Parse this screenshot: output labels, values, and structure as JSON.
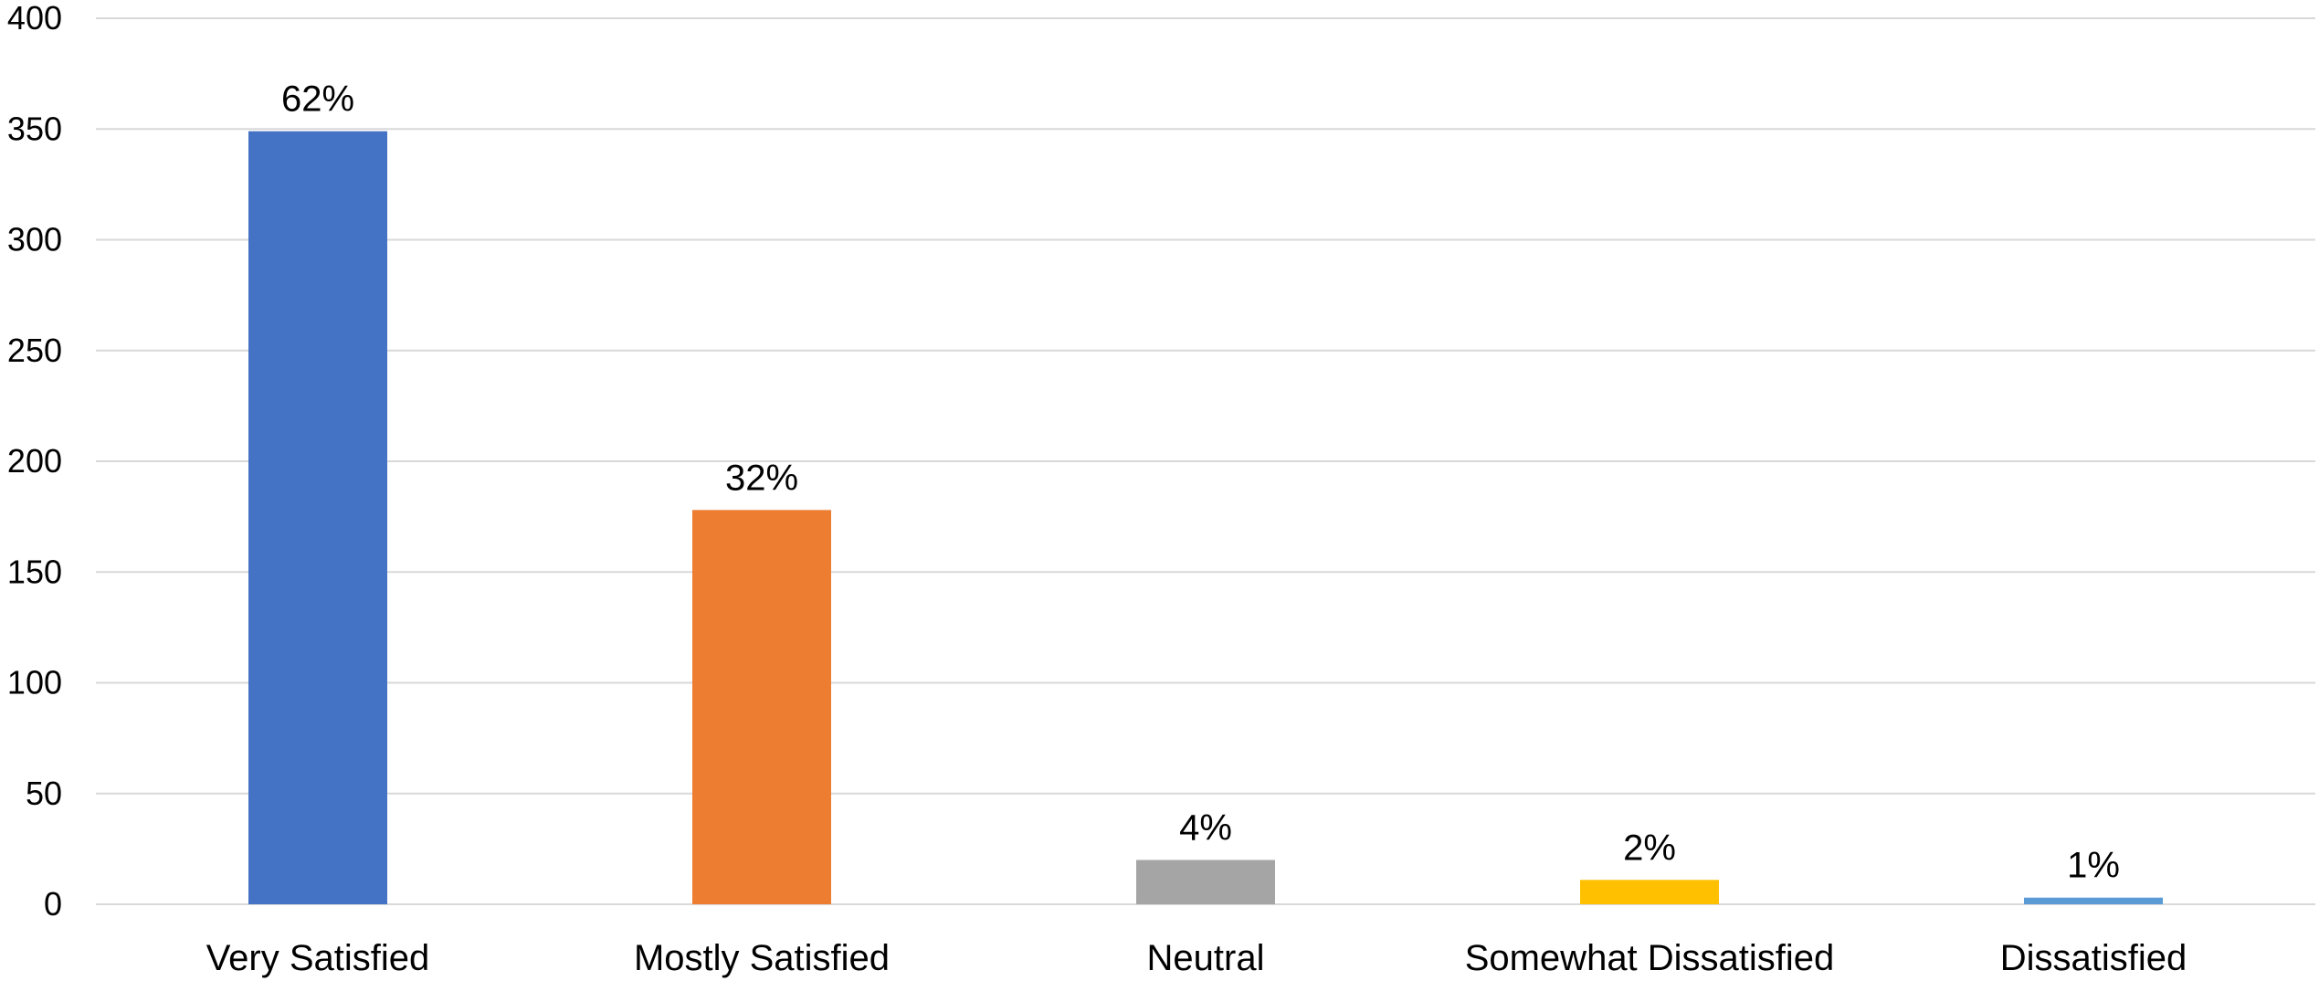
{
  "chart_data": {
    "type": "bar",
    "title": "",
    "xlabel": "",
    "ylabel": "",
    "categories": [
      "Very Satisfied",
      "Mostly Satisfied",
      "Neutral",
      "Somewhat Dissatisfied",
      "Dissatisfied"
    ],
    "values": [
      349,
      178,
      20,
      11,
      3
    ],
    "data_labels": [
      "62%",
      "32%",
      "4%",
      "2%",
      "1%"
    ],
    "colors": [
      "#4472C4",
      "#ED7D31",
      "#A5A5A5",
      "#FFC000",
      "#5B9BD5"
    ],
    "ylim": [
      0,
      400
    ],
    "yticks": [
      0,
      50,
      100,
      150,
      200,
      250,
      300,
      350,
      400
    ],
    "grid": true,
    "legend": "none"
  }
}
